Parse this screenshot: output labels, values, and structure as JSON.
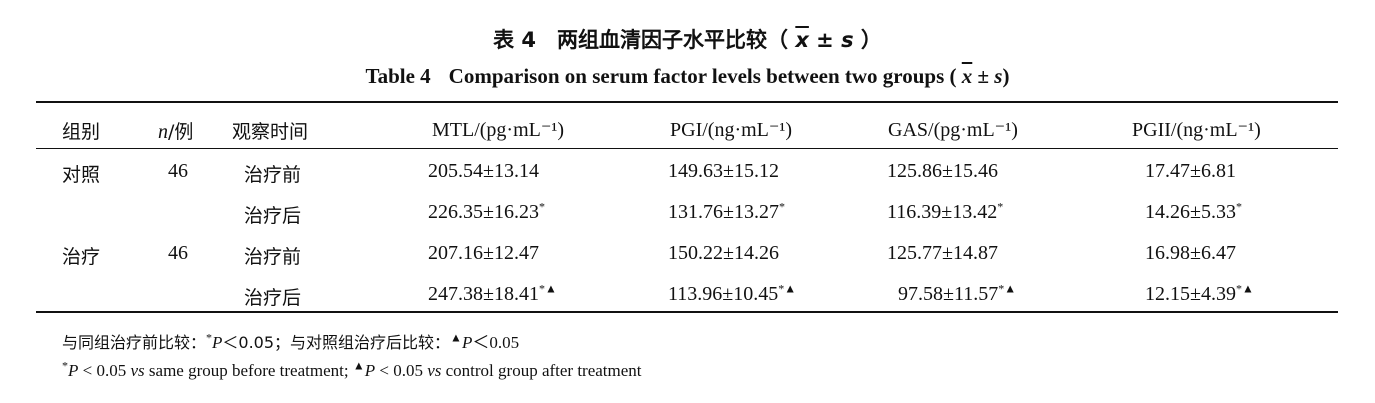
{
  "title": {
    "cn_prefix": "表 4　两组血清因子水平比较（",
    "cn_suffix": "）",
    "en_num": "Table 4",
    "en_text": "Comparison on serum factor levels between two groups (",
    "en_suffix": ")",
    "xbar": "x",
    "pm_s": " ± s"
  },
  "header": {
    "group": "组别",
    "n_italic": "n",
    "n_rest": "/例",
    "time": "观察时间",
    "mtl": "MTL/(pg·mL⁻¹)",
    "pgi": "PGI/(ng·mL⁻¹)",
    "gas": "GAS/(pg·mL⁻¹)",
    "pgii": "PGII/(ng·mL⁻¹)"
  },
  "rows": [
    {
      "group": "对照",
      "n": "46",
      "time": "治疗前",
      "mtl": "205.54±13.14",
      "mtl_sup": "",
      "pgi": "149.63±15.12",
      "pgi_sup": "",
      "gas": "125.86±15.46",
      "gas_sup": "",
      "pgii": "17.47±6.81",
      "pgii_sup": ""
    },
    {
      "group": "",
      "n": "",
      "time": "治疗后",
      "mtl": "226.35±16.23",
      "mtl_sup": "*",
      "pgi": "131.76±13.27",
      "pgi_sup": "*",
      "gas": "116.39±13.42",
      "gas_sup": "*",
      "pgii": "14.26±5.33",
      "pgii_sup": "*"
    },
    {
      "group": "治疗",
      "n": "46",
      "time": "治疗前",
      "mtl": "207.16±12.47",
      "mtl_sup": "",
      "pgi": "150.22±14.26",
      "pgi_sup": "",
      "gas": "125.77±14.87",
      "gas_sup": "",
      "pgii": "16.98±6.47",
      "pgii_sup": ""
    },
    {
      "group": "",
      "n": "",
      "time": "治疗后",
      "mtl": "247.38±18.41",
      "mtl_sup": "*▲",
      "pgi": "113.96±10.45",
      "pgi_sup": "*▲",
      "gas": "97.58±11.57",
      "gas_sup": "*▲",
      "pgii": "12.15±4.39",
      "pgii_sup": "*▲"
    }
  ],
  "notes": {
    "cn_a": "与同组治疗前比较：",
    "cn_star": "*",
    "cn_p1": "P",
    "cn_b": "＜0.05；与对照组治疗后比较：",
    "cn_tri": "▲",
    "cn_p2": "P",
    "cn_c": "＜0.05",
    "en_star": "*",
    "en_p1": "P",
    "en_a": " < 0.05 ",
    "en_vs1": "vs",
    "en_b": " same group before treatment; ",
    "en_tri": "▲",
    "en_p2": "P",
    "en_c": " < 0.05 ",
    "en_vs2": "vs",
    "en_d": " control group after treatment"
  }
}
